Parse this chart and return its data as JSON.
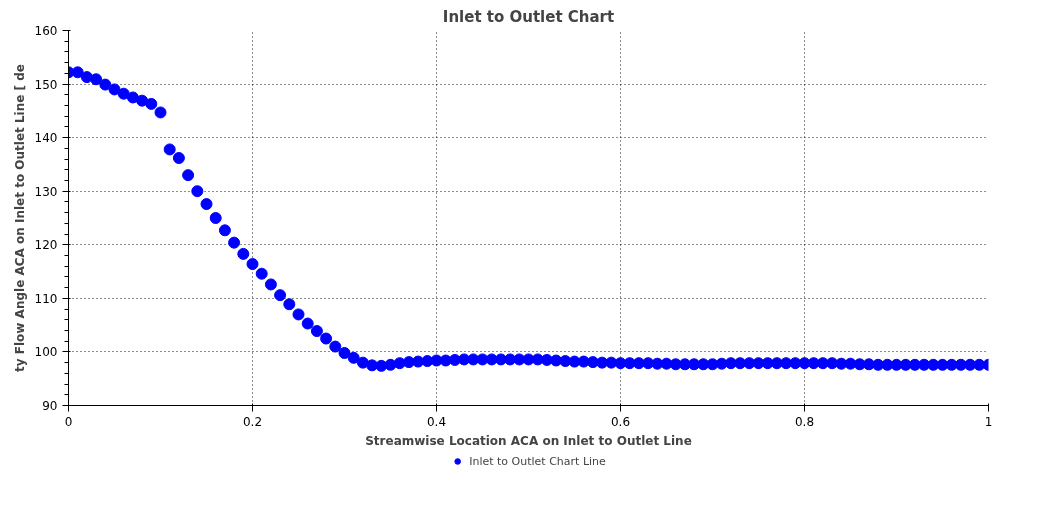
{
  "chart_data": {
    "type": "scatter",
    "title": "Inlet to Outlet Chart",
    "xlabel": "Streamwise Location ACA on Inlet to Outlet Line",
    "ylabel": "ty Flow Angle ACA on Inlet to Outlet Line [ de",
    "xlim": [
      0,
      1
    ],
    "xticks": [
      0,
      0.2,
      0.4,
      0.6,
      0.8,
      1
    ],
    "ylim": [
      90,
      160
    ],
    "yticks": [
      90,
      100,
      110,
      120,
      130,
      140,
      150,
      160
    ],
    "grid": true,
    "legend": "bottom",
    "marker": "circle",
    "x": [
      0,
      0.01,
      0.02,
      0.03,
      0.04,
      0.05,
      0.06,
      0.07,
      0.08,
      0.09,
      0.1,
      0.11,
      0.12,
      0.13,
      0.14,
      0.15,
      0.16,
      0.17,
      0.18,
      0.19,
      0.2,
      0.21,
      0.22,
      0.23,
      0.24,
      0.25,
      0.26,
      0.27,
      0.28,
      0.29,
      0.3,
      0.31,
      0.32,
      0.33,
      0.34,
      0.35,
      0.36,
      0.37,
      0.38,
      0.39,
      0.4,
      0.41,
      0.42,
      0.43,
      0.44,
      0.45,
      0.46,
      0.47,
      0.48,
      0.49,
      0.5,
      0.51,
      0.52,
      0.53,
      0.54,
      0.55,
      0.56,
      0.57,
      0.58,
      0.59,
      0.6,
      0.61,
      0.62,
      0.63,
      0.64,
      0.65,
      0.66,
      0.67,
      0.68,
      0.69,
      0.7,
      0.71,
      0.72,
      0.73,
      0.74,
      0.75,
      0.76,
      0.77,
      0.78,
      0.79,
      0.8,
      0.81,
      0.82,
      0.83,
      0.84,
      0.85,
      0.86,
      0.87,
      0.88,
      0.89,
      0.9,
      0.91,
      0.92,
      0.93,
      0.94,
      0.95,
      0.96,
      0.97,
      0.98,
      0.99,
      1
    ],
    "series": [
      {
        "name": "Inlet to Outlet Chart Line",
        "color": "#0000ff",
        "values": [
          152.2,
          152.2,
          151.3,
          150.9,
          149.9,
          149.0,
          148.2,
          147.5,
          146.9,
          146.3,
          144.7,
          137.8,
          136.2,
          133.0,
          130.0,
          127.6,
          125.0,
          122.7,
          120.4,
          118.3,
          116.4,
          114.6,
          112.6,
          110.6,
          108.9,
          107.0,
          105.3,
          103.9,
          102.5,
          101.0,
          99.8,
          98.9,
          98.0,
          97.5,
          97.4,
          97.6,
          97.9,
          98.1,
          98.2,
          98.3,
          98.4,
          98.4,
          98.5,
          98.6,
          98.6,
          98.6,
          98.6,
          98.6,
          98.6,
          98.6,
          98.6,
          98.6,
          98.5,
          98.4,
          98.3,
          98.2,
          98.2,
          98.1,
          98.0,
          98.0,
          97.9,
          97.9,
          97.9,
          97.9,
          97.8,
          97.8,
          97.7,
          97.7,
          97.7,
          97.7,
          97.7,
          97.8,
          97.9,
          97.9,
          97.9,
          97.9,
          97.9,
          97.9,
          97.9,
          97.9,
          97.9,
          97.9,
          97.9,
          97.9,
          97.8,
          97.8,
          97.7,
          97.7,
          97.6,
          97.6,
          97.6,
          97.6,
          97.6,
          97.6,
          97.6,
          97.6,
          97.6,
          97.6,
          97.6,
          97.6,
          97.6
        ]
      }
    ]
  }
}
